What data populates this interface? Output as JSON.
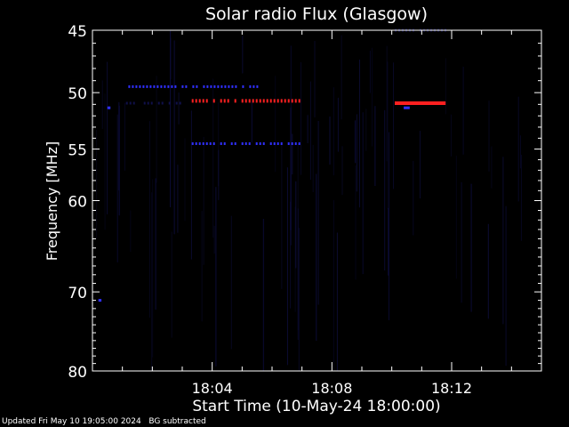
{
  "chart_data": {
    "type": "heatmap",
    "title": "Solar radio Flux (Glasgow)",
    "xlabel": "Start Time (10-May-24 18:00:00)",
    "ylabel": "Frequency [MHz]",
    "x_ticks": [
      "18:04",
      "18:08",
      "18:12"
    ],
    "x_tick_minutes": [
      4,
      8,
      12
    ],
    "xlim_minutes": [
      0,
      15
    ],
    "y_ticks": [
      45,
      50,
      55,
      60,
      70,
      80
    ],
    "ylim": [
      45,
      80
    ],
    "y_scale": "log",
    "background_color": "#000000",
    "colors": {
      "emission_strong": "#ff2020",
      "emission_medium": "#3030ff",
      "emission_faint": "#10104a",
      "axis": "#ffffff"
    },
    "emission": [
      {
        "freq": 50.7,
        "t_start": 3.2,
        "t_end": 6.9,
        "level": "strong",
        "dashed": true
      },
      {
        "freq": 54.5,
        "t_start": 3.2,
        "t_end": 6.9,
        "level": "medium",
        "dashed": true
      },
      {
        "freq": 49.5,
        "t_start": 1.2,
        "t_end": 5.7,
        "level": "medium",
        "dashed": true
      },
      {
        "freq": 50.9,
        "t_start": 1.0,
        "t_end": 3.0,
        "level": "faint",
        "dashed": true
      },
      {
        "freq": 50.9,
        "t_start": 10.1,
        "t_end": 11.8,
        "level": "strong",
        "dashed": false
      },
      {
        "freq": 51.3,
        "t_start": 10.4,
        "t_end": 10.6,
        "level": "medium",
        "dashed": false
      },
      {
        "freq": 45.0,
        "t_start": 10.1,
        "t_end": 11.8,
        "level": "faint",
        "dashed": true
      },
      {
        "freq": 71.0,
        "t_start": 0.2,
        "t_end": 0.3,
        "level": "medium",
        "dashed": false
      },
      {
        "freq": 51.3,
        "t_start": 0.5,
        "t_end": 0.6,
        "level": "medium",
        "dashed": false
      }
    ]
  },
  "footer": {
    "updated": "Updated Fri May 10 19:05:00 2024",
    "note": "BG subtracted"
  }
}
